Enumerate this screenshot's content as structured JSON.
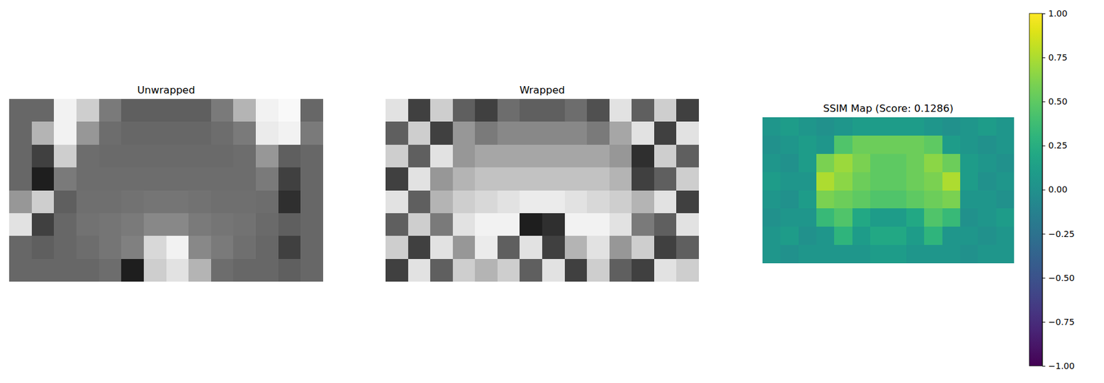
{
  "chart_data": [
    {
      "type": "heatmap",
      "title": "Unwrapped",
      "color": "gray",
      "tick_labels": false,
      "cells": [
        [
          0.33,
          0.33,
          0.9,
          0.7,
          0.4,
          0.3,
          0.3,
          0.3,
          0.3,
          0.4,
          0.6,
          0.9,
          0.95,
          0.33
        ],
        [
          0.33,
          0.6,
          0.9,
          0.5,
          0.35,
          0.33,
          0.33,
          0.33,
          0.33,
          0.35,
          0.4,
          0.85,
          0.9,
          0.4
        ],
        [
          0.33,
          0.2,
          0.7,
          0.35,
          0.34,
          0.34,
          0.34,
          0.34,
          0.34,
          0.34,
          0.35,
          0.5,
          0.3,
          0.33
        ],
        [
          0.33,
          0.1,
          0.4,
          0.35,
          0.35,
          0.35,
          0.35,
          0.35,
          0.35,
          0.35,
          0.35,
          0.4,
          0.2,
          0.33
        ],
        [
          0.5,
          0.7,
          0.3,
          0.36,
          0.36,
          0.37,
          0.38,
          0.38,
          0.37,
          0.36,
          0.36,
          0.35,
          0.15,
          0.33
        ],
        [
          0.8,
          0.2,
          0.33,
          0.37,
          0.38,
          0.4,
          0.45,
          0.45,
          0.4,
          0.38,
          0.37,
          0.34,
          0.3,
          0.33
        ],
        [
          0.33,
          0.3,
          0.33,
          0.35,
          0.38,
          0.42,
          0.75,
          0.9,
          0.45,
          0.4,
          0.36,
          0.33,
          0.2,
          0.33
        ],
        [
          0.33,
          0.33,
          0.33,
          0.33,
          0.35,
          0.1,
          0.7,
          0.8,
          0.6,
          0.35,
          0.33,
          0.33,
          0.3,
          0.33
        ]
      ]
    },
    {
      "type": "heatmap",
      "title": "Wrapped",
      "color": "gray",
      "tick_labels": false,
      "cells": [
        [
          0.8,
          0.2,
          0.7,
          0.3,
          0.2,
          0.35,
          0.3,
          0.3,
          0.35,
          0.25,
          0.8,
          0.3,
          0.7,
          0.2
        ],
        [
          0.3,
          0.7,
          0.2,
          0.5,
          0.4,
          0.45,
          0.45,
          0.45,
          0.45,
          0.4,
          0.55,
          0.8,
          0.2,
          0.8
        ],
        [
          0.7,
          0.3,
          0.8,
          0.5,
          0.55,
          0.55,
          0.55,
          0.55,
          0.55,
          0.55,
          0.5,
          0.15,
          0.7,
          0.3
        ],
        [
          0.2,
          0.8,
          0.5,
          0.6,
          0.65,
          0.65,
          0.65,
          0.65,
          0.65,
          0.65,
          0.6,
          0.2,
          0.3,
          0.7
        ],
        [
          0.8,
          0.3,
          0.6,
          0.7,
          0.75,
          0.8,
          0.85,
          0.85,
          0.8,
          0.75,
          0.7,
          0.6,
          0.8,
          0.2
        ],
        [
          0.3,
          0.7,
          0.4,
          0.8,
          0.9,
          0.9,
          0.1,
          0.15,
          0.9,
          0.9,
          0.8,
          0.4,
          0.3,
          0.8
        ],
        [
          0.7,
          0.2,
          0.8,
          0.5,
          0.85,
          0.3,
          0.8,
          0.2,
          0.6,
          0.8,
          0.5,
          0.7,
          0.2,
          0.3
        ],
        [
          0.2,
          0.8,
          0.3,
          0.7,
          0.6,
          0.7,
          0.3,
          0.8,
          0.2,
          0.7,
          0.3,
          0.2,
          0.8,
          0.7
        ]
      ]
    },
    {
      "type": "heatmap",
      "title": "SSIM Map (Score: 0.1286)",
      "color": "viridis",
      "tick_labels": false,
      "cells": [
        [
          0.05,
          0.1,
          0.05,
          0.0,
          0.05,
          0.1,
          0.1,
          0.1,
          0.1,
          0.05,
          0.0,
          0.05,
          0.1,
          0.05
        ],
        [
          0.0,
          0.05,
          0.1,
          0.05,
          0.45,
          0.55,
          0.55,
          0.55,
          0.55,
          0.5,
          0.1,
          0.05,
          0.0,
          0.05
        ],
        [
          0.05,
          0.0,
          0.1,
          0.6,
          0.7,
          0.6,
          0.5,
          0.5,
          0.55,
          0.65,
          0.55,
          0.1,
          0.05,
          0.0
        ],
        [
          0.1,
          0.05,
          0.05,
          0.75,
          0.65,
          0.55,
          0.5,
          0.5,
          0.55,
          0.6,
          0.75,
          0.1,
          0.0,
          0.05
        ],
        [
          0.05,
          0.0,
          0.1,
          0.6,
          0.55,
          0.5,
          0.45,
          0.45,
          0.5,
          0.55,
          0.6,
          0.05,
          0.05,
          0.0
        ],
        [
          0.0,
          0.05,
          0.05,
          0.35,
          0.45,
          0.2,
          0.1,
          0.1,
          0.2,
          0.45,
          0.35,
          0.0,
          0.05,
          0.1
        ],
        [
          0.05,
          0.1,
          0.0,
          0.05,
          0.3,
          0.1,
          0.2,
          0.2,
          0.1,
          0.3,
          0.05,
          0.05,
          0.0,
          0.05
        ],
        [
          0.05,
          0.0,
          0.05,
          0.05,
          0.05,
          0.05,
          0.1,
          0.1,
          0.05,
          0.05,
          0.05,
          0.0,
          0.05,
          0.05
        ]
      ],
      "colorbar_range": [
        -1,
        1
      ],
      "colorbar_ticks": [
        {
          "value": -1,
          "label": "−1.00"
        },
        {
          "value": -0.75,
          "label": "−0.75"
        },
        {
          "value": -0.5,
          "label": "−0.50"
        },
        {
          "value": -0.25,
          "label": "−0.25"
        },
        {
          "value": 0,
          "label": "0.00"
        },
        {
          "value": 0.25,
          "label": "0.25"
        },
        {
          "value": 0.5,
          "label": "0.50"
        },
        {
          "value": 0.75,
          "label": "0.75"
        },
        {
          "value": 1,
          "label": "1.00"
        }
      ]
    }
  ]
}
